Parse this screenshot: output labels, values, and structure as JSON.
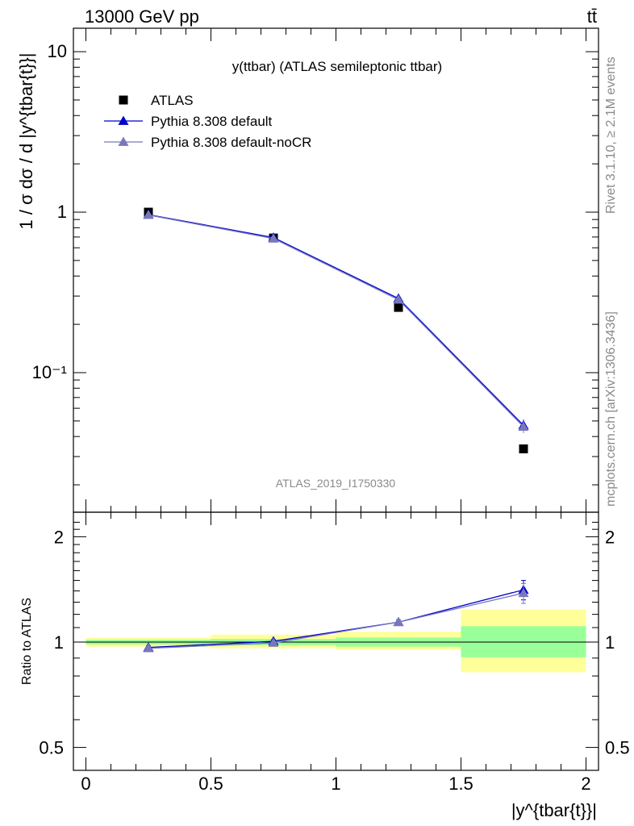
{
  "header": {
    "energy_label": "13000 GeV pp",
    "process_label": "tt̄"
  },
  "side_labels": {
    "rivet": "Rivet 3.1.10, ≥ 2.1M events",
    "source": "mcplots.cern.ch [arXiv:1306.3436]"
  },
  "chart_data": [
    {
      "type": "line",
      "title": "y(ttbar) (ATLAS semileptonic ttbar)",
      "watermark": "ATLAS_2019_I1750330",
      "ylabel": "1 / σ dσ / d |y^{tbar{t}}|",
      "xlabel": "|y^{tbar{t}}|",
      "yscale": "log",
      "ylim": [
        0.0135,
        14
      ],
      "xlim": [
        -0.05,
        2.05
      ],
      "y_tick_labels": [
        "10",
        "1",
        "10⁻¹"
      ],
      "legend_position": "top-left",
      "x": [
        0.25,
        0.75,
        1.25,
        1.75
      ],
      "series": [
        {
          "name": "ATLAS",
          "marker": "square",
          "color": "#000000",
          "values": [
            1.0,
            0.69,
            0.255,
            0.0335
          ]
        },
        {
          "name": "Pythia 8.308 default",
          "marker": "triangle",
          "color": "#0000cc",
          "values": [
            0.965,
            0.695,
            0.29,
            0.047
          ],
          "errors": [
            0.008,
            0.006,
            0.004,
            0.004
          ]
        },
        {
          "name": "Pythia 8.308 default-noCR",
          "marker": "triangle",
          "color": "#7777bb",
          "values": [
            0.96,
            0.685,
            0.285,
            0.046
          ],
          "errors": [
            0.008,
            0.006,
            0.004,
            0.004
          ]
        }
      ]
    },
    {
      "type": "line",
      "ylabel": "Ratio to ATLAS",
      "xlabel": "|y^{tbar{t}}|",
      "ylim": [
        0.43,
        2.35
      ],
      "yscale": "log",
      "y_tick_labels": [
        "2",
        "1",
        "0.5"
      ],
      "x_tick_labels": [
        "0",
        "0.5",
        "1",
        "1.5",
        "2"
      ],
      "x": [
        0.25,
        0.75,
        1.25,
        1.75
      ],
      "bins": [
        [
          0,
          0.5
        ],
        [
          0.5,
          1.0
        ],
        [
          1.0,
          1.5
        ],
        [
          1.5,
          2.0
        ]
      ],
      "band_stat": [
        [
          0.985,
          1.015
        ],
        [
          0.98,
          1.02
        ],
        [
          0.97,
          1.03
        ],
        [
          0.905,
          1.11
        ]
      ],
      "band_total": [
        [
          0.97,
          1.03
        ],
        [
          0.96,
          1.05
        ],
        [
          0.95,
          1.07
        ],
        [
          0.82,
          1.24
        ]
      ],
      "series": [
        {
          "name": "Pythia 8.308 default",
          "color": "#0000cc",
          "values": [
            0.965,
            1.005,
            1.14,
            1.41
          ],
          "errors": [
            0.01,
            0.01,
            0.02,
            0.09
          ]
        },
        {
          "name": "Pythia 8.308 default-noCR",
          "color": "#7777bb",
          "values": [
            0.96,
            0.995,
            1.14,
            1.38
          ],
          "errors": [
            0.01,
            0.01,
            0.02,
            0.09
          ]
        }
      ]
    }
  ]
}
